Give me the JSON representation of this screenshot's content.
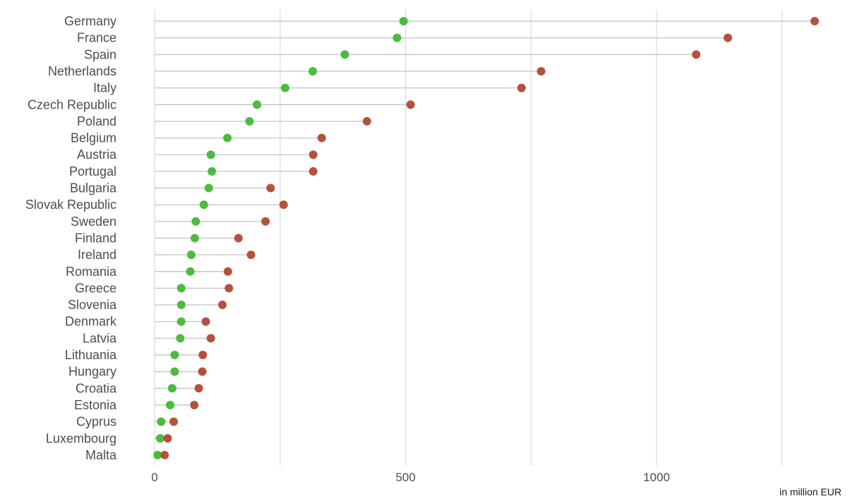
{
  "chart_data": {
    "type": "scatter",
    "variant": "dumbbell",
    "title": "",
    "xlabel": "in million EUR",
    "ylabel": "",
    "xlim": [
      0,
      1300
    ],
    "x_ticks": [
      0,
      500,
      1000
    ],
    "x_tick_labels": [
      "0",
      "500",
      "1000"
    ],
    "x_gridlines": [
      0,
      250,
      500,
      750,
      1000,
      1250
    ],
    "grid": true,
    "legend": "none",
    "colors": {
      "low": "#4cbb3f",
      "high": "#b5523b",
      "connector": "#c8c8c8",
      "grid": "#d9d9d9"
    },
    "categories": [
      "Germany",
      "France",
      "Spain",
      "Netherlands",
      "Italy",
      "Czech Republic",
      "Poland",
      "Belgium",
      "Austria",
      "Portugal",
      "Bulgaria",
      "Slovak Republic",
      "Sweden",
      "Finland",
      "Ireland",
      "Romania",
      "Greece",
      "Slovenia",
      "Denmark",
      "Latvia",
      "Lithuania",
      "Hungary",
      "Croatia",
      "Estonia",
      "Cyprus",
      "Luxembourg",
      "Malta"
    ],
    "series": [
      {
        "values": [
          496,
          483,
          379,
          315,
          260,
          204,
          189,
          145,
          112,
          114,
          108,
          98,
          82,
          80,
          73,
          71,
          53,
          53,
          53,
          51,
          40,
          40,
          35,
          31,
          13,
          11,
          6
        ]
      },
      {
        "values": [
          1315,
          1142,
          1079,
          770,
          731,
          510,
          423,
          333,
          316,
          316,
          231,
          257,
          221,
          167,
          192,
          146,
          148,
          135,
          102,
          112,
          96,
          95,
          88,
          79,
          38,
          26,
          20
        ]
      }
    ]
  }
}
